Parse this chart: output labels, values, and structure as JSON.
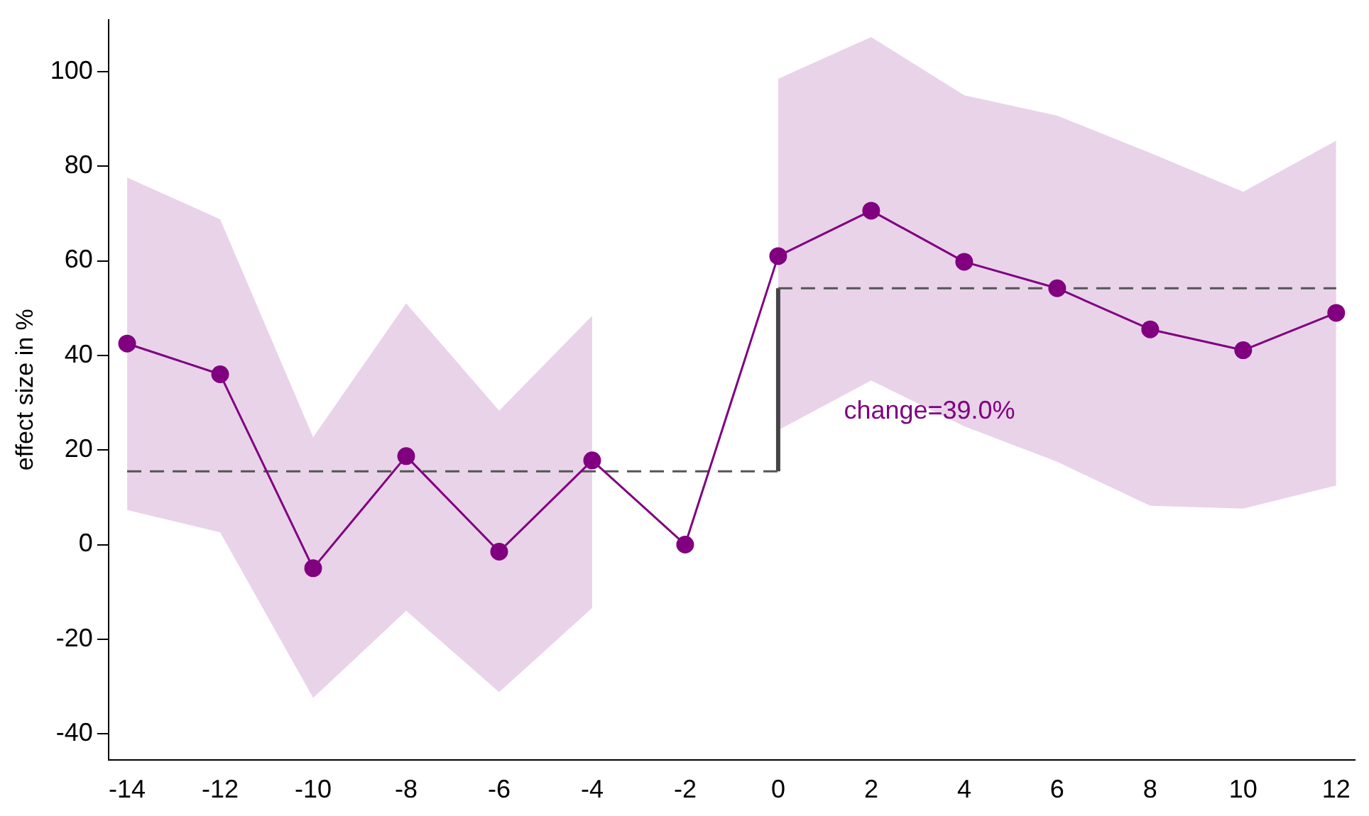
{
  "chart_data": {
    "type": "line",
    "ylabel": "effect size in %",
    "xlim": [
      -14.4,
      12.4
    ],
    "ylim": [
      -45.5,
      111
    ],
    "xticks": [
      -14,
      -12,
      -10,
      -8,
      -6,
      -4,
      -2,
      0,
      2,
      4,
      6,
      8,
      10,
      12
    ],
    "yticks": [
      -40,
      -20,
      0,
      20,
      40,
      60,
      80,
      100
    ],
    "grid": false,
    "legend": false,
    "series": [
      {
        "color": "#800080",
        "marker": "circle",
        "line_style": "solid",
        "x": [
          -14,
          -12,
          -10,
          -8,
          -6,
          -4,
          -2,
          0,
          2,
          4,
          6,
          8,
          10,
          12
        ],
        "values": [
          42.5,
          36,
          -5,
          18.7,
          -1.5,
          17.8,
          0,
          61,
          70.6,
          59.8,
          54.2,
          45.5,
          41.1,
          49
        ],
        "lower": [
          7.3,
          2.6,
          -32.4,
          -14,
          -31.2,
          -13.4,
          null,
          24.2,
          34.7,
          25,
          17.5,
          8.2,
          7.6,
          12.5
        ],
        "upper": [
          77.6,
          68.8,
          22.7,
          51,
          28.3,
          48.4,
          null,
          98.5,
          107.3,
          95,
          90.7,
          82.8,
          74.6,
          85.4
        ]
      },
      {
        "color": "#555555",
        "marker": "none",
        "line_style": "dashed",
        "x": [
          -14,
          0
        ],
        "values": [
          15.5,
          15.5
        ]
      },
      {
        "color": "#555555",
        "marker": "none",
        "line_style": "dashed",
        "x": [
          0,
          12
        ],
        "values": [
          54.2,
          54.2
        ]
      },
      {
        "color": "#444444",
        "marker": "none",
        "line_style": "solid",
        "x": [
          0,
          0
        ],
        "values": [
          15.5,
          54.2
        ]
      }
    ],
    "annotations": [
      "change=39.0%"
    ]
  }
}
